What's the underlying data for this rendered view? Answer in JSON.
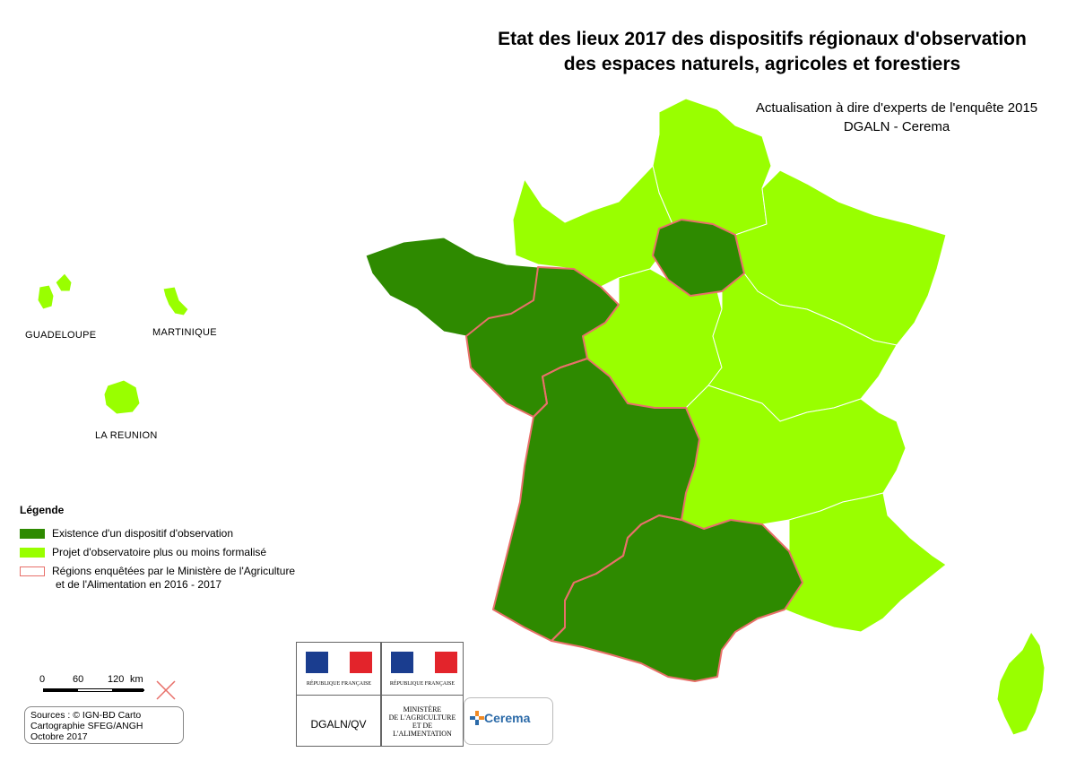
{
  "title_line1": "Etat des lieux 2017 des dispositifs régionaux d'observation",
  "title_line2": "des espaces naturels, agricoles et forestiers",
  "subtitle_line1": "Actualisation à dire d'experts de l'enquête 2015",
  "subtitle_line2": "DGALN - Cerema",
  "overseas": {
    "guadeloupe": "GUADELOUPE",
    "martinique": "MARTINIQUE",
    "reunion": "LA REUNION"
  },
  "legend": {
    "title": "Légende",
    "items": [
      {
        "label": "Existence d'un dispositif d'observation",
        "color": "#2e8a00"
      },
      {
        "label": "Projet d'observatoire plus ou moins formalisé",
        "color": "#99ff00"
      },
      {
        "label": "Régions enquêtées par le Ministère de l'Agriculture",
        "label2": "et de l'Alimentation en 2016 - 2017",
        "color": "#e8706a"
      }
    ]
  },
  "scale": {
    "labels": [
      "0",
      "60",
      "120",
      "km"
    ]
  },
  "sources": {
    "line1": "Sources : © IGN-BD Carto",
    "line2": "Cartographie SFEG/ANGH",
    "line3": "Octobre 2017"
  },
  "logos": {
    "rf_text": "RÉPUBLIQUE FRANÇAISE",
    "dgaln": "DGALN/QV",
    "ministry_lines": [
      "MINISTÈRE",
      "DE L'AGRICULTURE",
      "ET DE",
      "L'ALIMENTATION"
    ],
    "cerema": "Cerema"
  },
  "colors": {
    "dark_green": "#2e8a00",
    "light_green": "#99ff00",
    "survey_outline": "#e8706a",
    "flag_blue": "#1a3d8f",
    "flag_red": "#e3242b"
  }
}
